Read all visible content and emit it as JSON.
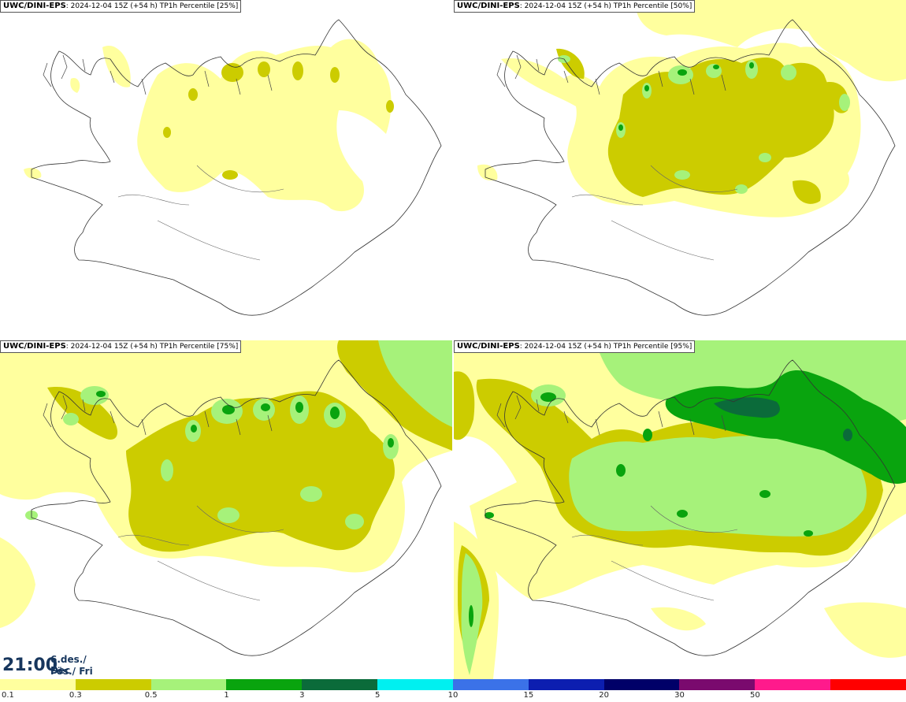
{
  "panels": [
    {
      "model": "UWC/DINI-EPS",
      "run": "2024-12-04 15Z (+54 h)",
      "product": "TP1h Percentile [25%]",
      "percentile": 25
    },
    {
      "model": "UWC/DINI-EPS",
      "run": "2024-12-04 15Z (+54 h)",
      "product": "TP1h Percentile [50%]",
      "percentile": 50
    },
    {
      "model": "UWC/DINI-EPS",
      "run": "2024-12-04 15Z (+54 h)",
      "product": "TP1h Percentile [75%]",
      "percentile": 75
    },
    {
      "model": "UWC/DINI-EPS",
      "run": "2024-12-04 15Z (+54 h)",
      "product": "TP1h Percentile [95%]",
      "percentile": 95
    }
  ],
  "valid_time": {
    "time": "21:00",
    "date_line1": "6.des./ Dec",
    "date_line2": "Fös./ Fri"
  },
  "colorbar": {
    "labels": [
      "0.1",
      "0.3",
      "0.5",
      "1",
      "3",
      "5",
      "10",
      "15",
      "20",
      "30",
      "50"
    ],
    "colors": [
      "#ffff9e",
      "#cccc00",
      "#a6f27a",
      "#09a40e",
      "#0b6b3a",
      "#00f0f0",
      "#3b72e8",
      "#0c1eb0",
      "#000068",
      "#7a0a6e",
      "#ff1a8c",
      "#ff0000"
    ]
  },
  "colors": {
    "level_0_1": "#ffff9e",
    "level_0_3": "#cccc00",
    "level_0_5": "#a6f27a",
    "level_1": "#09a40e",
    "level_3": "#0b6b3a",
    "title_text": "#17365d",
    "coastline": "#333333"
  }
}
